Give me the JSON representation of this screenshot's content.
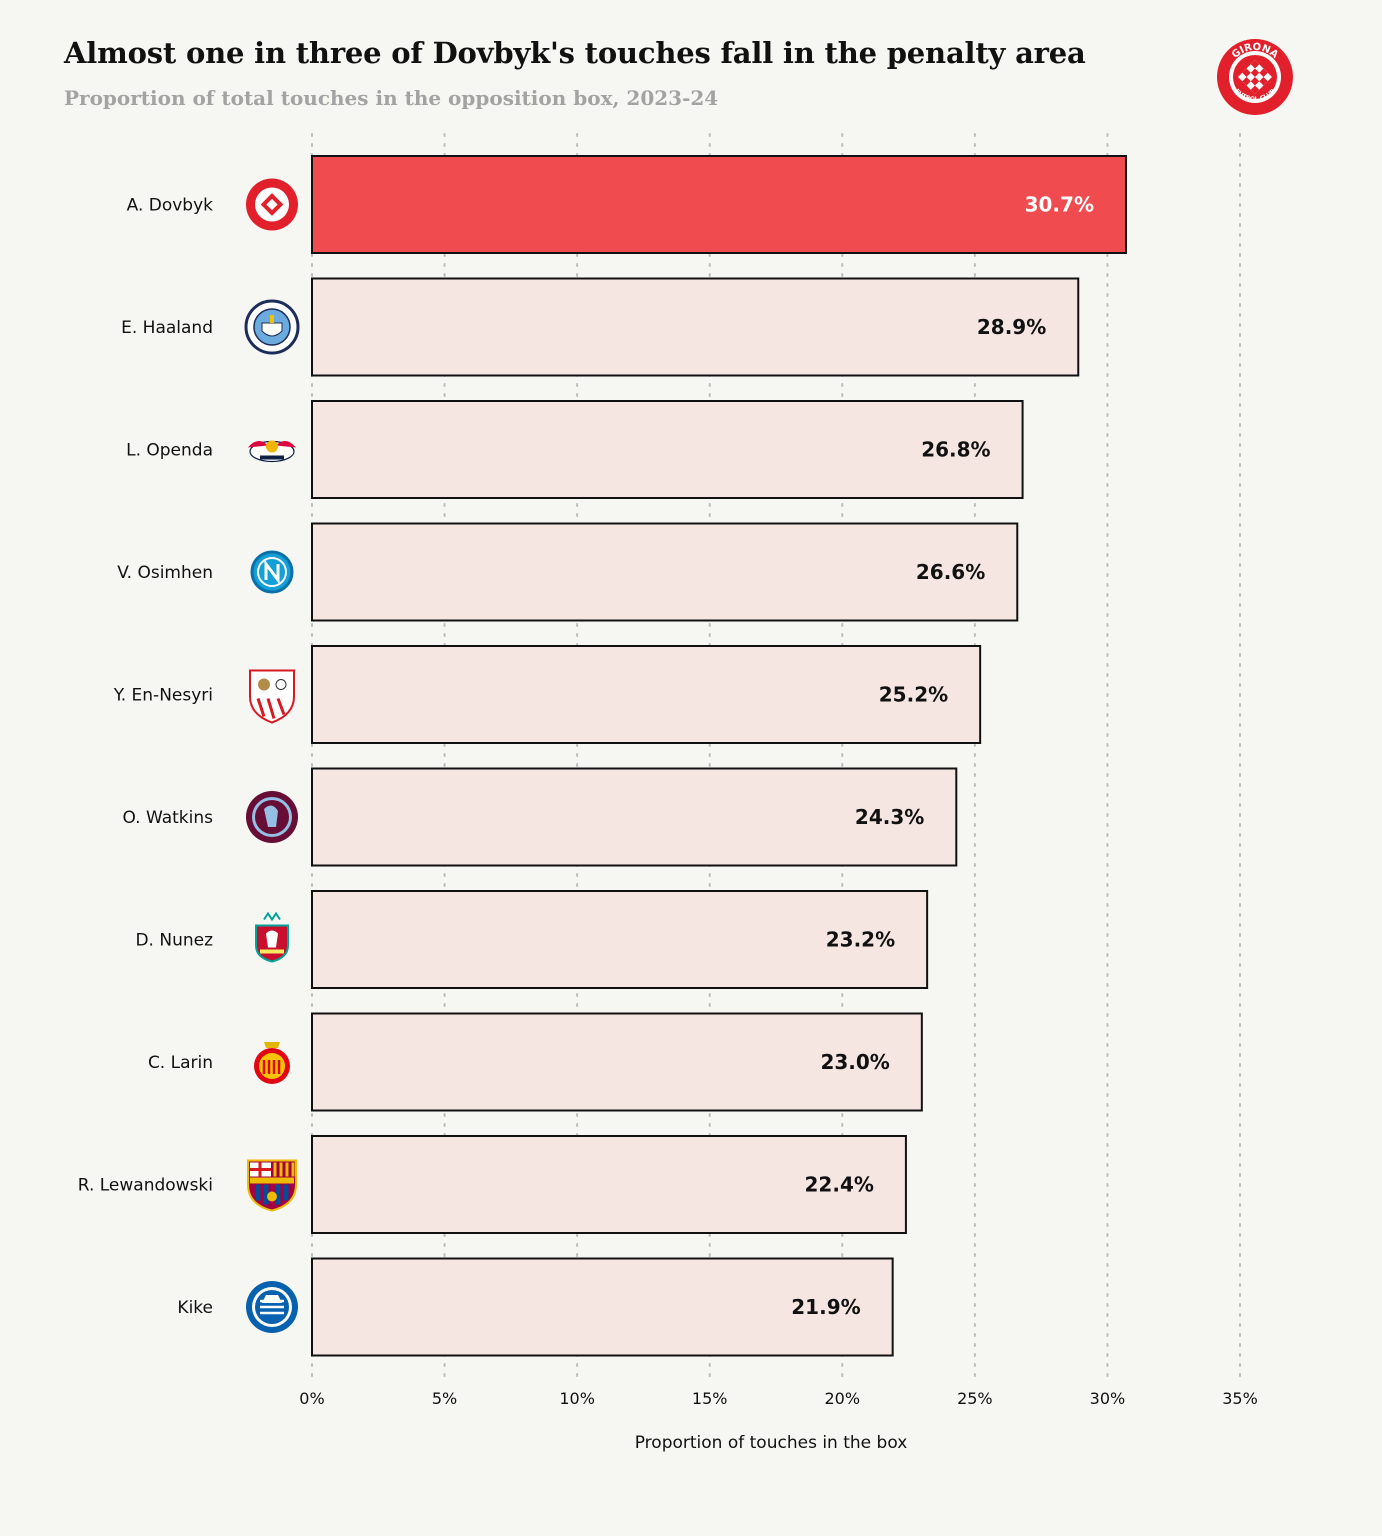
{
  "title": "Almost one in three of Dovbyk's touches fall in the penalty area",
  "subtitle": "Proportion of total touches in the opposition box, 2023-24",
  "brand_logo": {
    "icon": "girona-fc-crest-icon",
    "text_top": "GIRONA",
    "text_bottom": "FUTBOL CLUB"
  },
  "colors": {
    "highlight": "#f04b4e",
    "bar": "#f5e6e2",
    "bar_border": "#111111",
    "highlight_text": "#ffffff",
    "label_text": "#111111",
    "grid": "#bbbbbb"
  },
  "chart_data": {
    "type": "bar",
    "orientation": "horizontal",
    "title": "Almost one in three of Dovbyk's touches fall in the penalty area",
    "subtitle": "Proportion of total touches in the opposition box, 2023-24",
    "xlabel": "Proportion of touches in the box",
    "ylabel": "",
    "xlim": [
      0,
      35
    ],
    "xticks": [
      0,
      5,
      10,
      15,
      20,
      25,
      30,
      35
    ],
    "xtick_labels": [
      "0%",
      "5%",
      "10%",
      "15%",
      "20%",
      "25%",
      "30%",
      "35%"
    ],
    "grid": "vertical dotted",
    "categories": [
      "A. Dovbyk",
      "E. Haaland",
      "L. Openda",
      "V. Osimhen",
      "Y. En-Nesyri",
      "O. Watkins",
      "D. Nunez",
      "C. Larin",
      "R. Lewandowski",
      "Kike"
    ],
    "values": [
      30.7,
      28.9,
      26.8,
      26.6,
      25.2,
      24.3,
      23.2,
      23.0,
      22.4,
      21.9
    ],
    "value_labels": [
      "30.7%",
      "28.9%",
      "26.8%",
      "26.6%",
      "25.2%",
      "24.3%",
      "23.2%",
      "23.0%",
      "22.4%",
      "21.9%"
    ],
    "clubs": [
      "girona-crest-icon",
      "manchester-city-crest-icon",
      "rb-leipzig-crest-icon",
      "napoli-crest-icon",
      "sevilla-crest-icon",
      "aston-villa-crest-icon",
      "liverpool-crest-icon",
      "mallorca-crest-icon",
      "barcelona-crest-icon",
      "alaves-crest-icon"
    ],
    "highlight_index": 0
  }
}
